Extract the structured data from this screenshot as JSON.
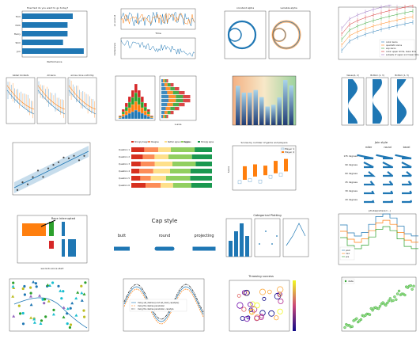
{
  "colors": {
    "blue": "#1f77b4",
    "orange": "#ff7f0e",
    "green": "#2ca02c",
    "red": "#d62728",
    "purple": "#9467bd",
    "gray": "#7f7f7f"
  },
  "tiles": {
    "hbar": {
      "title": "How fast do you want to go today?",
      "labels": [
        "Tom",
        "Dick",
        "Harry",
        "Slim",
        "Jim"
      ],
      "values": [
        0.78,
        0.7,
        0.7,
        0.63,
        0.95
      ],
      "xlabel": "Performance"
    },
    "noise": {
      "top_label": "s1 and s2",
      "bottom_label": "Coherence",
      "xlabel": "Time"
    },
    "circles": {
      "left_title": "constant alpha",
      "right_title": "variable alpha"
    },
    "errlines": {
      "legend": [
        "cubic zeros",
        "quadratic zeros",
        "exp zeros",
        "cubic upper limits, lower lims",
        "subsets of upper and lower lims"
      ]
    },
    "vline_panels": {
      "titles": [
        "Global Contexts",
        "All zeros",
        "across clone uniformly"
      ]
    },
    "hist_multi": {
      "legend_left": [
        "bar1",
        "bar2",
        "bar3",
        "bar4"
      ],
      "legend_right": [
        "bar1",
        "bar2",
        "bar3",
        "bar4"
      ],
      "xlabel": "x-axis"
    },
    "gradient_bars": {},
    "violins": {
      "titles": [
        "Values(1, 2)",
        "Bottom (1, 3)",
        "Bottom (1, 3)"
      ]
    },
    "regression": {},
    "stacked": {
      "legend": [
        "Strongly disagree",
        "Disagree",
        "Neither agree nor disagree",
        "Agree",
        "Strongly agree"
      ],
      "rows": [
        "Question 1",
        "Question 2",
        "Question 3",
        "Question 4",
        "Question 5",
        "Question 6"
      ]
    },
    "boxplot_scatter": {
      "title": "Scores by number of game and players",
      "legend": [
        "Player 1",
        "Player 2"
      ],
      "ylabel": "Score"
    },
    "joinstyle": {
      "title": "Join style",
      "columns": [
        "miter",
        "round",
        "bevel"
      ],
      "rows": [
        "135 degrees",
        "90 degrees",
        "60 degrees",
        "45 degrees",
        "30 degrees",
        "20 degrees"
      ]
    },
    "broken_bar": {
      "title": "Race interrupted",
      "xlabel": "seconds since start"
    },
    "capstyle": {
      "title": "Cap style",
      "labels": [
        "butt",
        "round",
        "projecting"
      ]
    },
    "categorical": {
      "title": "Categorical Plotting",
      "categories": [
        "apple",
        "orange",
        "lemon",
        "lime"
      ]
    },
    "steps": {
      "title": "plt.step(where=...)",
      "legend": [
        "post",
        "mid",
        "pre"
      ]
    },
    "scatter_shapes": {},
    "sine_err": {
      "legend": [
        "Using set_dashes() and set_dash_capstyle()",
        "Using the dashes parameter",
        "Using the dashes parameter, capstyle"
      ]
    },
    "throwing": {
      "title": "Throwing success"
    },
    "staircase": {
      "legend": [
        "data"
      ]
    }
  }
}
